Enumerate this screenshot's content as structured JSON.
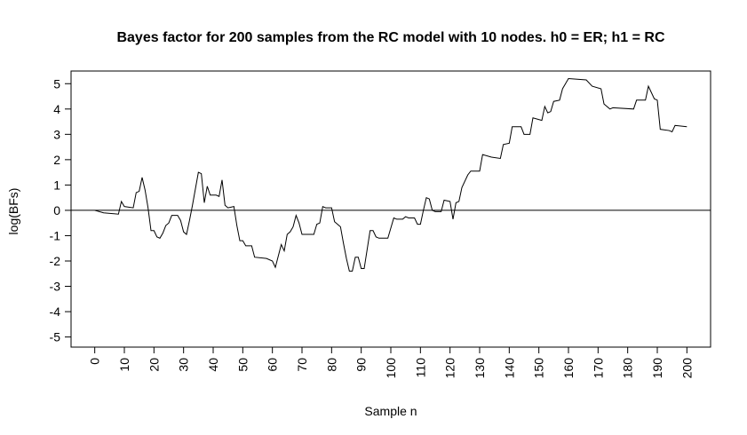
{
  "chart_data": {
    "type": "line",
    "title": "Bayes factor for 200 samples from the RC model with 10 nodes. h0 = ER; h1 = RC",
    "x_label": "Sample n",
    "y_label": "log(BFs)",
    "x": [
      0,
      3,
      8,
      9,
      10,
      13,
      14,
      15,
      16,
      17,
      18,
      19,
      20,
      21,
      22,
      23,
      24,
      25,
      26,
      28,
      29,
      30,
      31,
      32,
      33,
      35,
      36,
      37,
      38,
      39,
      41,
      42,
      43,
      44,
      45,
      47,
      48,
      49,
      50,
      51,
      53,
      54,
      58,
      60,
      61,
      63,
      64,
      65,
      66,
      67,
      68,
      69,
      70,
      74,
      75,
      76,
      77,
      78,
      80,
      81,
      82,
      83,
      84,
      85,
      86,
      87,
      88,
      89,
      90,
      91,
      93,
      94,
      95,
      96,
      99,
      100,
      101,
      102,
      104,
      105,
      106,
      108,
      109,
      110,
      111,
      112,
      113,
      114,
      115,
      117,
      118,
      120,
      121,
      122,
      123,
      124,
      126,
      127,
      130,
      131,
      134,
      137,
      138,
      140,
      141,
      144,
      145,
      147,
      148,
      151,
      152,
      153,
      154,
      155,
      157,
      158,
      160,
      166,
      168,
      171,
      172,
      174,
      175,
      182,
      183,
      186,
      187,
      189,
      190,
      191,
      194,
      195,
      196,
      200
    ],
    "series": [
      {
        "name": "log(BFs)",
        "color": "#000000",
        "values": [
          0,
          -0.1,
          -0.15,
          0.35,
          0.15,
          0.1,
          0.7,
          0.75,
          1.3,
          0.8,
          0.1,
          -0.8,
          -0.8,
          -1.05,
          -1.1,
          -0.9,
          -0.6,
          -0.5,
          -0.2,
          -0.2,
          -0.4,
          -0.85,
          -0.95,
          -0.4,
          0.2,
          1.5,
          1.45,
          0.3,
          0.95,
          0.6,
          0.6,
          0.55,
          1.2,
          0.2,
          0.1,
          0.15,
          -0.6,
          -1.2,
          -1.2,
          -1.4,
          -1.4,
          -1.85,
          -1.9,
          -2.0,
          -2.25,
          -1.35,
          -1.6,
          -0.95,
          -0.85,
          -0.65,
          -0.2,
          -0.5,
          -0.95,
          -0.95,
          -0.55,
          -0.5,
          0.15,
          0.1,
          0.1,
          -0.45,
          -0.55,
          -0.65,
          -1.3,
          -1.9,
          -2.4,
          -2.4,
          -1.85,
          -1.85,
          -2.3,
          -2.3,
          -0.8,
          -0.8,
          -1.05,
          -1.1,
          -1.1,
          -0.7,
          -0.3,
          -0.35,
          -0.35,
          -0.25,
          -0.3,
          -0.3,
          -0.55,
          -0.55,
          0.0,
          0.5,
          0.45,
          0.0,
          -0.05,
          -0.05,
          0.4,
          0.35,
          -0.35,
          0.3,
          0.35,
          0.9,
          1.4,
          1.55,
          1.55,
          2.2,
          2.1,
          2.05,
          2.6,
          2.65,
          3.3,
          3.3,
          3.0,
          3.0,
          3.65,
          3.55,
          4.1,
          3.85,
          3.9,
          4.3,
          4.35,
          4.8,
          5.2,
          5.15,
          4.9,
          4.8,
          4.2,
          4.0,
          4.05,
          4.0,
          4.35,
          4.35,
          4.9,
          4.4,
          4.35,
          3.2,
          3.15,
          3.1,
          3.35,
          3.3
        ]
      }
    ],
    "reference_line": 0,
    "xlim": [
      -8,
      208
    ],
    "ylim": [
      -5.4,
      5.5
    ],
    "xticks": [
      0,
      10,
      20,
      30,
      40,
      50,
      60,
      70,
      80,
      90,
      100,
      110,
      120,
      130,
      140,
      150,
      160,
      170,
      180,
      190,
      200
    ],
    "yticks": [
      -5,
      -4,
      -3,
      -2,
      -1,
      0,
      1,
      2,
      3,
      4,
      5
    ]
  }
}
